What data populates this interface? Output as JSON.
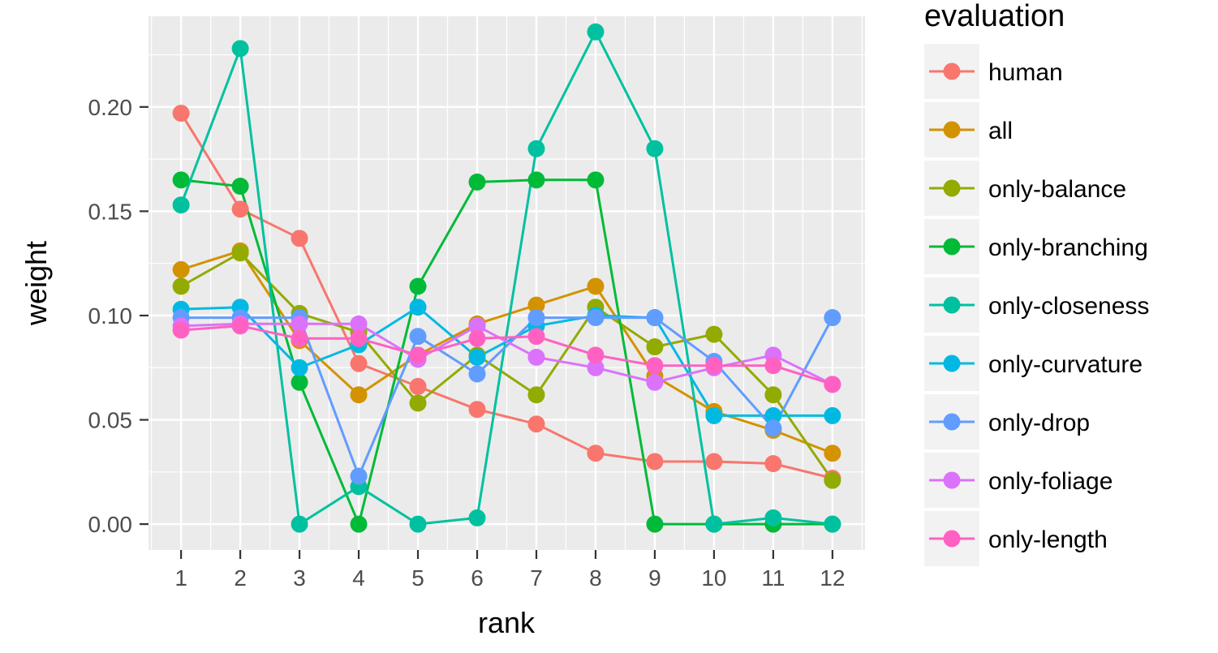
{
  "chart_data": {
    "type": "line",
    "xlabel": "rank",
    "ylabel": "weight",
    "x": [
      1,
      2,
      3,
      4,
      5,
      6,
      7,
      8,
      9,
      10,
      11,
      12
    ],
    "x_tick_labels": [
      "1",
      "2",
      "3",
      "4",
      "5",
      "6",
      "7",
      "8",
      "9",
      "10",
      "11",
      "12"
    ],
    "y_tick_labels": [
      "0.00",
      "0.05",
      "0.10",
      "0.15",
      "0.20"
    ],
    "y_ticks": [
      0.0,
      0.05,
      0.1,
      0.15,
      0.2
    ],
    "ylim": [
      -0.0124,
      0.2435
    ],
    "xlim": [
      0.45,
      12.55
    ],
    "grid": true,
    "legend_position": "right",
    "legend_title": "evaluation",
    "series": [
      {
        "name": "human",
        "color": "#F8766D",
        "values": [
          0.197,
          0.151,
          0.137,
          0.077,
          0.066,
          0.055,
          0.048,
          0.034,
          0.03,
          0.03,
          0.029,
          0.022
        ]
      },
      {
        "name": "all",
        "color": "#D39200",
        "values": [
          0.122,
          0.131,
          0.088,
          0.062,
          0.081,
          0.096,
          0.105,
          0.114,
          0.071,
          0.054,
          0.045,
          0.034
        ]
      },
      {
        "name": "only-balance",
        "color": "#93AA00",
        "values": [
          0.114,
          0.13,
          0.101,
          0.092,
          0.058,
          0.081,
          0.062,
          0.104,
          0.085,
          0.091,
          0.062,
          0.021
        ]
      },
      {
        "name": "only-branching",
        "color": "#00BA38",
        "values": [
          0.165,
          0.162,
          0.068,
          0.0,
          0.114,
          0.164,
          0.165,
          0.165,
          0.0,
          0.0,
          0.0,
          0.0
        ]
      },
      {
        "name": "only-closeness",
        "color": "#00C19F",
        "values": [
          0.153,
          0.228,
          0.0,
          0.018,
          0.0,
          0.003,
          0.18,
          0.236,
          0.18,
          0.0,
          0.003,
          0.0
        ]
      },
      {
        "name": "only-curvature",
        "color": "#00B9E3",
        "values": [
          0.103,
          0.104,
          0.075,
          0.086,
          0.104,
          0.08,
          0.095,
          0.1,
          0.099,
          0.052,
          0.052,
          0.052
        ]
      },
      {
        "name": "only-drop",
        "color": "#619CFF",
        "values": [
          0.099,
          0.099,
          0.099,
          0.023,
          0.09,
          0.072,
          0.099,
          0.099,
          0.099,
          0.078,
          0.046,
          0.099
        ]
      },
      {
        "name": "only-foliage",
        "color": "#DB72FB",
        "values": [
          0.095,
          0.096,
          0.096,
          0.096,
          0.079,
          0.095,
          0.08,
          0.075,
          0.068,
          0.075,
          0.081,
          0.067
        ]
      },
      {
        "name": "only-length",
        "color": "#FF61C3",
        "values": [
          0.093,
          0.095,
          0.089,
          0.089,
          0.081,
          0.089,
          0.09,
          0.081,
          0.076,
          0.076,
          0.076,
          0.067
        ]
      }
    ]
  }
}
